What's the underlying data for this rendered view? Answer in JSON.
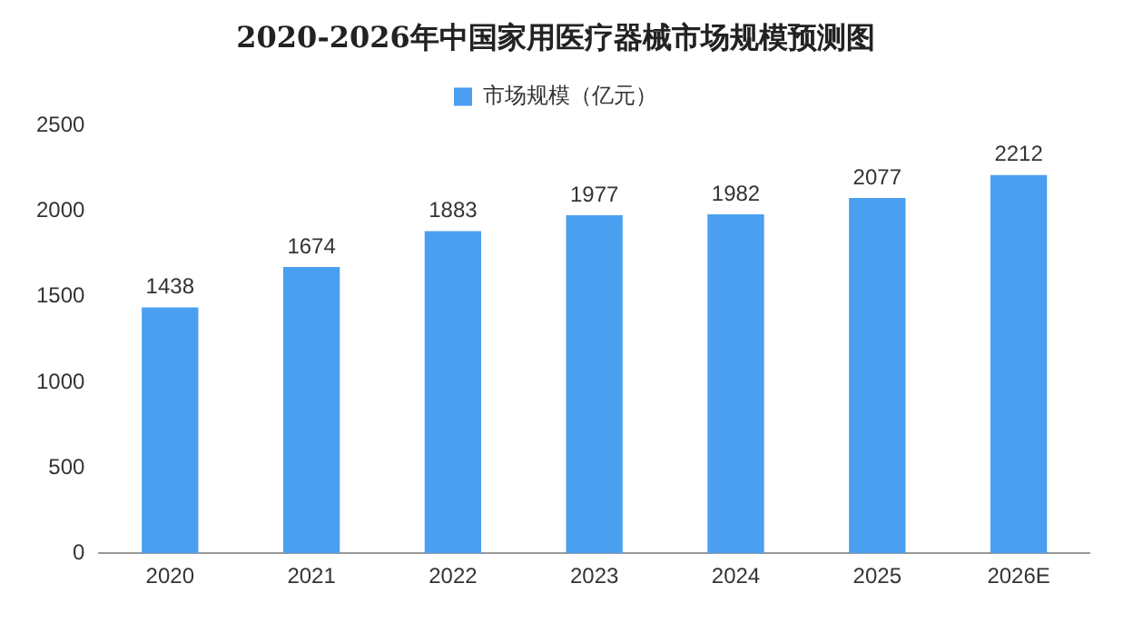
{
  "chart_data": {
    "type": "bar",
    "title": "2020-2026年中国家用医疗器械市场规模预测图",
    "categories": [
      "2020",
      "2021",
      "2022",
      "2023",
      "2024",
      "2025",
      "2026E"
    ],
    "series": [
      {
        "name": "市场规模（亿元）",
        "color": "#4a9ff0",
        "values": [
          1438,
          1674,
          1883,
          1977,
          1982,
          2077,
          2212
        ]
      }
    ],
    "ylim": [
      0,
      2500
    ],
    "yticks": [
      0,
      500,
      1000,
      1500,
      2000,
      2500
    ],
    "grid": false,
    "legend": "top",
    "data_labels": true
  }
}
